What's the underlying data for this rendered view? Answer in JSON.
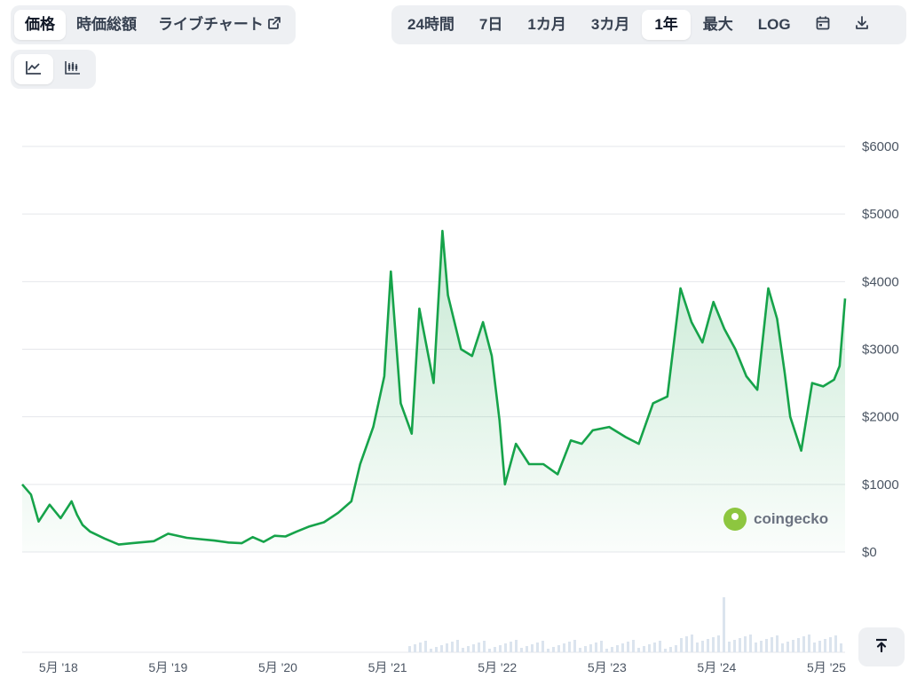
{
  "tabs_left": [
    {
      "label": "価格",
      "active": true
    },
    {
      "label": "時価総額",
      "active": false
    },
    {
      "label": "ライブチャート",
      "active": false,
      "external_icon": "external-link-icon"
    }
  ],
  "range_tabs": [
    {
      "label": "24時間",
      "active": false
    },
    {
      "label": "7日",
      "active": false
    },
    {
      "label": "1カ月",
      "active": false
    },
    {
      "label": "3カ月",
      "active": false
    },
    {
      "label": "1年",
      "active": true
    },
    {
      "label": "最大",
      "active": false
    },
    {
      "label": "LOG",
      "active": false
    }
  ],
  "range_icons": [
    "calendar-icon",
    "download-icon"
  ],
  "chart_type_icons": [
    {
      "icon": "line-chart-icon",
      "active": true
    },
    {
      "icon": "candlestick-chart-icon",
      "active": false
    }
  ],
  "watermark": {
    "text": "coingecko",
    "icon": "coingecko-logo-icon"
  },
  "scroll_top_icon": "arrow-up-to-top-icon",
  "colors": {
    "line": "#16a34a",
    "area_top": "#16a34a",
    "grid": "#e5e7eb",
    "volume": "#dbe4ee",
    "accent_bg": "#eef0f3"
  },
  "chart_data": {
    "type": "area",
    "y_ticks": [
      "$0",
      "$1000",
      "$2000",
      "$3000",
      "$4000",
      "$5000",
      "$6000"
    ],
    "y_tick_values": [
      0,
      1000,
      2000,
      3000,
      4000,
      5000,
      6000
    ],
    "ylim": [
      0,
      6000
    ],
    "x_tick_labels": [
      "5月 '18",
      "5月 '19",
      "5月 '20",
      "5月 '21",
      "5月 '22",
      "5月 '23",
      "5月 '24",
      "5月 '25"
    ],
    "x_tick_values": [
      2018.33,
      2019.33,
      2020.33,
      2021.33,
      2022.33,
      2023.33,
      2024.33,
      2025.33
    ],
    "xlim": [
      2018.0,
      2025.5
    ],
    "grid": true,
    "series": [
      {
        "x": [
          2018.0,
          2018.08,
          2018.15,
          2018.25,
          2018.35,
          2018.45,
          2018.5,
          2018.55,
          2018.62,
          2018.75,
          2018.88,
          2019.0,
          2019.2,
          2019.33,
          2019.5,
          2019.62,
          2019.75,
          2019.88,
          2020.0,
          2020.1,
          2020.2,
          2020.3,
          2020.4,
          2020.5,
          2020.62,
          2020.75,
          2020.88,
          2021.0,
          2021.08,
          2021.2,
          2021.3,
          2021.36,
          2021.45,
          2021.55,
          2021.62,
          2021.75,
          2021.83,
          2021.88,
          2022.0,
          2022.1,
          2022.2,
          2022.28,
          2022.35,
          2022.4,
          2022.5,
          2022.62,
          2022.75,
          2022.88,
          2023.0,
          2023.1,
          2023.2,
          2023.35,
          2023.5,
          2023.62,
          2023.75,
          2023.88,
          2024.0,
          2024.1,
          2024.2,
          2024.3,
          2024.4,
          2024.5,
          2024.6,
          2024.7,
          2024.8,
          2024.88,
          2024.95,
          2025.0,
          2025.1,
          2025.2,
          2025.3,
          2025.4,
          2025.45,
          2025.5
        ],
        "values": [
          1000,
          850,
          450,
          700,
          500,
          750,
          550,
          400,
          300,
          200,
          110,
          130,
          160,
          270,
          210,
          190,
          170,
          140,
          130,
          220,
          150,
          240,
          230,
          300,
          380,
          440,
          580,
          750,
          1300,
          1850,
          2600,
          4150,
          2200,
          1750,
          3600,
          2500,
          4750,
          3800,
          3000,
          2900,
          3400,
          2900,
          1950,
          1000,
          1600,
          1300,
          1300,
          1150,
          1650,
          1600,
          1800,
          1850,
          1700,
          1600,
          2200,
          2300,
          3900,
          3400,
          3100,
          3700,
          3300,
          3000,
          2600,
          2400,
          3900,
          3450,
          2650,
          2000,
          1500,
          2500,
          2450,
          2550,
          2750,
          3750
        ]
      }
    ]
  }
}
